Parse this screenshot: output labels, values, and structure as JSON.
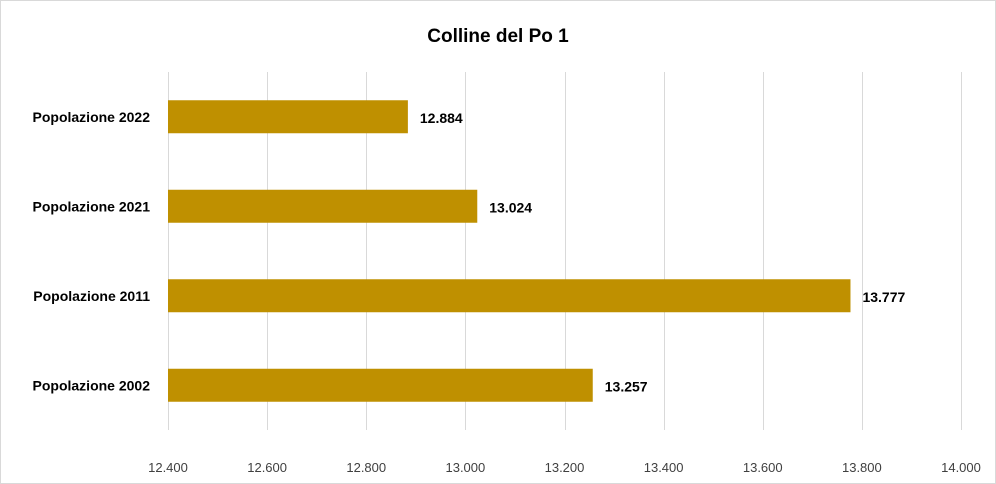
{
  "chart_data": {
    "type": "bar",
    "orientation": "horizontal",
    "title": "Colline del Po 1",
    "categories": [
      "Popolazione  2022",
      "Popolazione  2021",
      "Popolazione  2011",
      "Popolazione  2002"
    ],
    "values": [
      12884,
      13024,
      13777,
      13257
    ],
    "value_labels": [
      "12.884",
      "13.024",
      "13.777",
      "13.257"
    ],
    "xlim": [
      12400,
      14000
    ],
    "x_ticks": [
      12400,
      12600,
      12800,
      13000,
      13200,
      13400,
      13600,
      13800,
      14000
    ],
    "x_tick_labels": [
      "12.400",
      "12.600",
      "12.800",
      "13.000",
      "13.200",
      "13.400",
      "13.600",
      "13.800",
      "14.000"
    ],
    "xlabel": "",
    "ylabel": "",
    "grid": "vertical",
    "legend": "none",
    "bar_color": "#bf9000",
    "grid_color": "#d9d9d9"
  }
}
